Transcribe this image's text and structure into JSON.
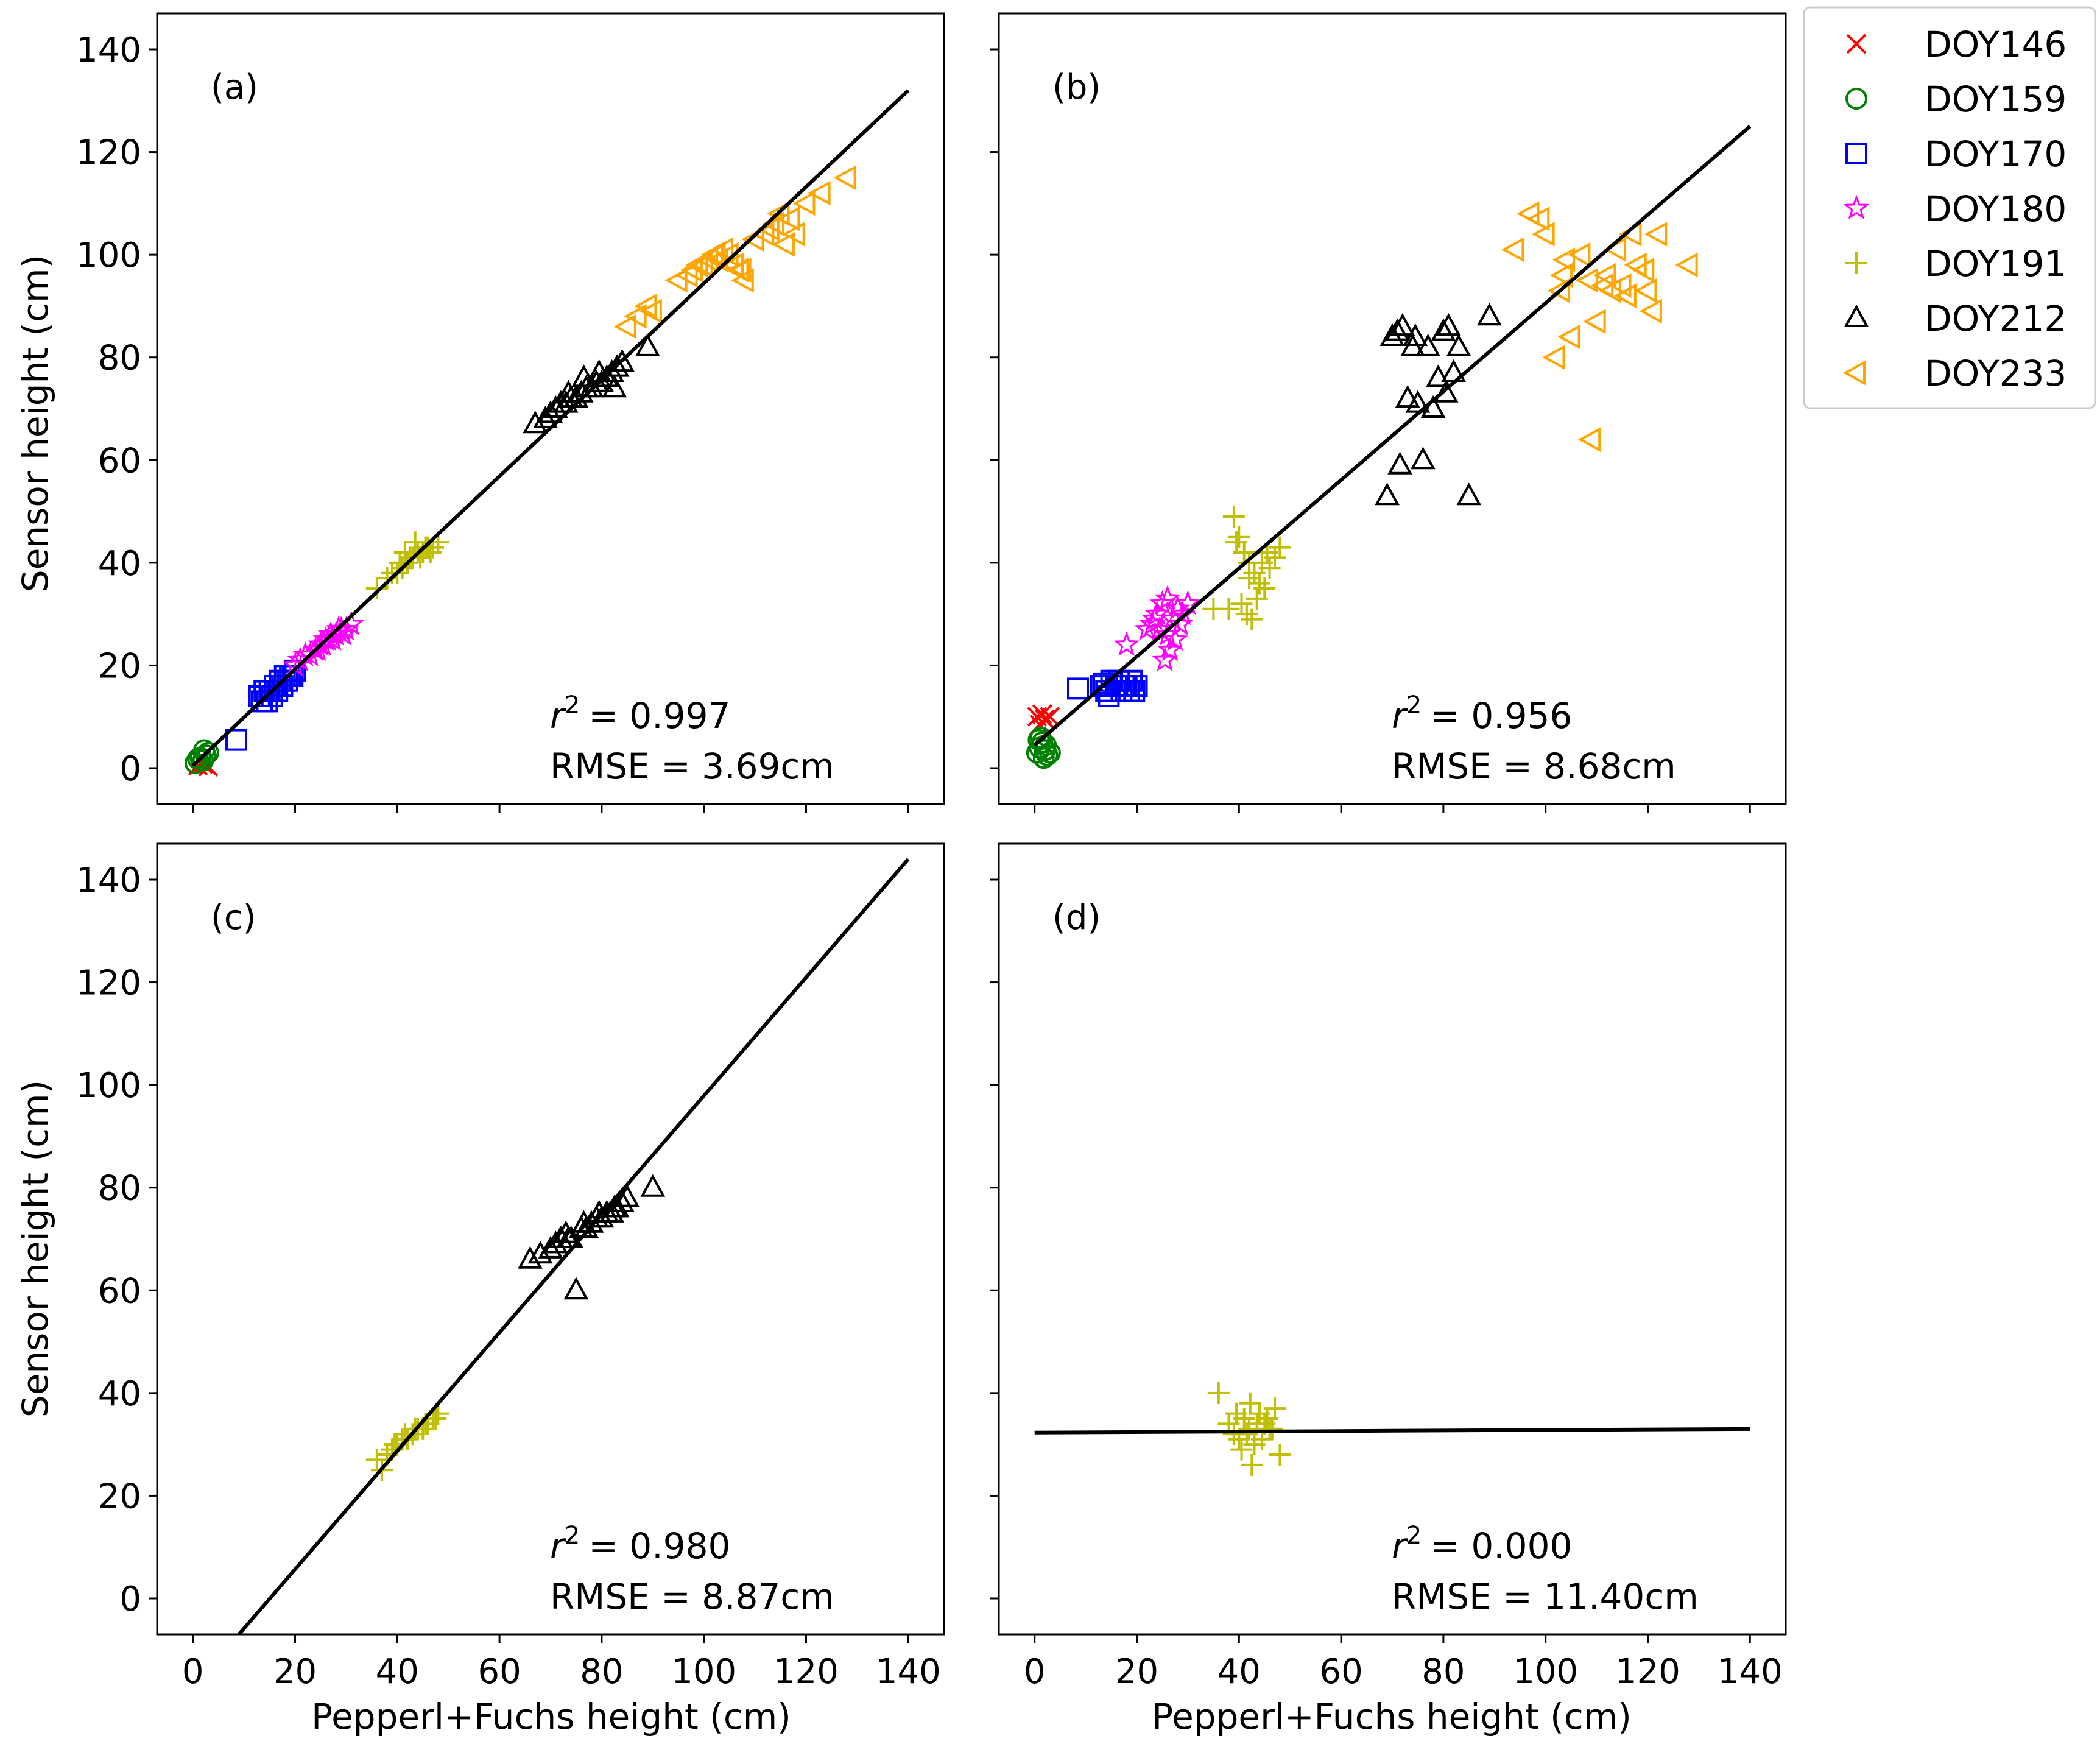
{
  "figure": {
    "xlabel": "Pepperl+Fuchs height (cm)",
    "ylabel": "Sensor height (cm)",
    "xticks": [
      "0",
      "20",
      "40",
      "60",
      "80",
      "100",
      "120",
      "140"
    ],
    "yticks": [
      "0",
      "20",
      "40",
      "60",
      "80",
      "100",
      "120",
      "140"
    ]
  },
  "legend": {
    "placement": "outside-right-top",
    "entries": [
      {
        "id": "DOY146",
        "label": "DOY146",
        "marker": "x-cross",
        "color": "#ff0000"
      },
      {
        "id": "DOY159",
        "label": "DOY159",
        "marker": "circle",
        "color": "#008000"
      },
      {
        "id": "DOY170",
        "label": "DOY170",
        "marker": "square",
        "color": "#0000ff"
      },
      {
        "id": "DOY180",
        "label": "DOY180",
        "marker": "star",
        "color": "#ff00ff"
      },
      {
        "id": "DOY191",
        "label": "DOY191",
        "marker": "plus",
        "color": "#bfbf00"
      },
      {
        "id": "DOY212",
        "label": "DOY212",
        "marker": "triangle-up",
        "color": "#000000"
      },
      {
        "id": "DOY233",
        "label": "DOY233",
        "marker": "triangle-left",
        "color": "#ffa500"
      }
    ]
  },
  "chart_data": [
    {
      "type": "scatter",
      "panel": "(a)",
      "xlim": [
        -7,
        147
      ],
      "ylim": [
        -7,
        147
      ],
      "r2_symbol": "r",
      "r2_value": "= 0.997",
      "rmse_text": "RMSE = 3.69cm",
      "fit": {
        "x": [
          0,
          140
        ],
        "y": [
          0.5,
          132
        ]
      },
      "series": [
        {
          "name": "DOY146",
          "x": [
            1.0,
            2.0,
            3.0
          ],
          "y": [
            0.5,
            0.8,
            0.3
          ]
        },
        {
          "name": "DOY159",
          "x": [
            0.5,
            1.5,
            2.0,
            2.5,
            3.0,
            1.0,
            2.2
          ],
          "y": [
            1.0,
            2.0,
            1.5,
            2.5,
            3.0,
            1.8,
            3.5
          ]
        },
        {
          "name": "DOY170",
          "x": [
            8.5,
            13,
            14,
            15,
            16,
            17,
            18,
            19,
            14.5,
            15.5,
            16.5,
            17.5,
            18.5,
            13.5,
            19.5,
            20
          ],
          "y": [
            5.5,
            14,
            15,
            15,
            16,
            17,
            18,
            18,
            13,
            14,
            15,
            16,
            17,
            13,
            18,
            19
          ]
        },
        {
          "name": "DOY180",
          "x": [
            20,
            22,
            24,
            25,
            26,
            27,
            28,
            29,
            30,
            23,
            25.5,
            27.5,
            29.5,
            31,
            21,
            24.5,
            26.5,
            28.5
          ],
          "y": [
            20,
            22,
            23,
            24,
            25,
            26,
            26,
            27,
            27,
            22,
            24,
            25,
            26,
            28,
            21,
            23,
            25,
            27
          ]
        },
        {
          "name": "DOY191",
          "x": [
            36,
            38,
            39,
            40,
            41,
            42,
            43,
            44,
            45,
            46,
            47,
            48,
            40.5,
            42.5,
            44.5,
            46.5,
            43.5,
            41.5,
            45.5
          ],
          "y": [
            35,
            37,
            38,
            38,
            39,
            40,
            41,
            42,
            42,
            43,
            43,
            44,
            40,
            41,
            41,
            42,
            44,
            42,
            43
          ]
        },
        {
          "name": "DOY212",
          "x": [
            67,
            69,
            70,
            71,
            72,
            73,
            74,
            75,
            76,
            77,
            78,
            79,
            80,
            81,
            82,
            83,
            84,
            89,
            73.5,
            76.5,
            79.5,
            82.5
          ],
          "y": [
            67,
            68,
            69,
            70,
            71,
            71,
            72,
            72,
            73,
            74,
            74,
            75,
            75,
            76,
            77,
            78,
            79,
            82,
            73,
            76,
            77,
            74
          ]
        },
        {
          "name": "DOY233",
          "x": [
            85,
            87,
            89,
            90,
            95,
            97,
            98,
            99,
            100,
            101,
            102,
            103,
            104,
            105,
            106,
            107,
            108,
            110,
            112,
            113,
            114,
            115,
            116,
            117,
            118,
            120,
            123,
            128,
            107.5,
            102.5
          ],
          "y": [
            86,
            88,
            90,
            89,
            95,
            96,
            97,
            98,
            98,
            99,
            100,
            99,
            101,
            100,
            98,
            97,
            95,
            103,
            104,
            105,
            106,
            108,
            102,
            107,
            104,
            110,
            112,
            115,
            97,
            100
          ]
        }
      ]
    },
    {
      "type": "scatter",
      "panel": "(b)",
      "xlim": [
        -7,
        147
      ],
      "ylim": [
        -7,
        147
      ],
      "r2_symbol": "r",
      "r2_value": "= 0.956",
      "rmse_text": "RMSE = 8.68cm",
      "fit": {
        "x": [
          0,
          140
        ],
        "y": [
          4.5,
          125
        ]
      },
      "series": [
        {
          "name": "DOY146",
          "x": [
            0.5,
            1.5,
            2.0,
            3.0,
            1.0
          ],
          "y": [
            10,
            10.5,
            9.5,
            10,
            8.5
          ]
        },
        {
          "name": "DOY159",
          "x": [
            0.5,
            1.0,
            1.5,
            2.0,
            2.5,
            3.0,
            1.2,
            2.2,
            1.8,
            0.8
          ],
          "y": [
            3,
            4,
            5,
            3.5,
            2.5,
            3,
            6,
            4.5,
            2,
            5.5
          ]
        },
        {
          "name": "DOY170",
          "x": [
            8.5,
            13,
            14,
            15,
            16,
            17,
            18,
            19,
            20,
            14.5,
            16.5,
            18.5,
            13.5,
            17.5,
            19.5
          ],
          "y": [
            15.5,
            16,
            15,
            17,
            16,
            15,
            16,
            17,
            16,
            14,
            17,
            15,
            16.5,
            16,
            15
          ]
        },
        {
          "name": "DOY180",
          "x": [
            18,
            22,
            23,
            24,
            25,
            26,
            27,
            28,
            29,
            30,
            25.5,
            26.5,
            27.5,
            24.5,
            28.5,
            23.5,
            26
          ],
          "y": [
            24,
            27,
            28,
            30,
            32,
            26,
            29,
            31,
            30,
            32,
            21,
            23,
            25,
            27,
            28,
            29,
            33
          ]
        },
        {
          "name": "DOY191",
          "x": [
            35,
            38,
            39,
            40,
            41,
            42,
            43,
            44,
            45,
            46,
            47,
            48,
            40.5,
            41.5,
            42.5,
            43.5,
            44.5,
            45.5,
            39.5,
            42
          ],
          "y": [
            31,
            31,
            49,
            45,
            42,
            40,
            38,
            36,
            35,
            39,
            41,
            43,
            32,
            30,
            29,
            33,
            40,
            42,
            44,
            37
          ]
        },
        {
          "name": "DOY212",
          "x": [
            69,
            70,
            71,
            72,
            73,
            74,
            75,
            76,
            77,
            78,
            79,
            80,
            81,
            82,
            83,
            85,
            89,
            71.5,
            80.5,
            74.5
          ],
          "y": [
            53,
            84,
            85,
            86,
            72,
            82,
            71,
            60,
            82,
            70,
            76,
            85,
            86,
            77,
            82,
            53,
            88,
            59,
            73,
            84
          ]
        },
        {
          "name": "DOY233",
          "x": [
            94,
            97,
            99,
            100,
            102,
            103,
            104,
            105,
            107,
            109,
            110,
            112,
            113,
            114,
            115,
            116,
            117,
            118,
            120,
            121,
            122,
            128,
            103.5,
            108.5,
            111.5,
            119.5
          ],
          "y": [
            101,
            108,
            107,
            104,
            80,
            93,
            99,
            84,
            100,
            64,
            87,
            96,
            93,
            101,
            94,
            92,
            104,
            98,
            93,
            89,
            104,
            98,
            96,
            95,
            94,
            97
          ]
        }
      ]
    },
    {
      "type": "scatter",
      "panel": "(c)",
      "xlim": [
        -7,
        147
      ],
      "ylim": [
        -7,
        147
      ],
      "r2_symbol": "r",
      "r2_value": "= 0.980",
      "rmse_text": "RMSE = 8.87cm",
      "fit": {
        "x": [
          9,
          140
        ],
        "y": [
          -7,
          144
        ]
      },
      "series": [
        {
          "name": "DOY191",
          "x": [
            36,
            37,
            38,
            39,
            40,
            41,
            42,
            43,
            44,
            45,
            46,
            47,
            48,
            39.5,
            41.5,
            43.5,
            45.5,
            47.5
          ],
          "y": [
            27,
            25,
            28,
            29,
            30,
            31,
            31,
            32,
            33,
            33,
            34,
            35,
            36,
            30,
            32,
            33,
            34,
            35
          ]
        },
        {
          "name": "DOY212",
          "x": [
            66,
            68,
            70,
            71,
            72,
            73,
            74,
            75,
            76,
            77,
            78,
            79,
            80,
            81,
            82,
            83,
            84,
            85,
            90,
            73.5,
            76.5,
            79.5,
            82.5
          ],
          "y": [
            66,
            67,
            68,
            69,
            70,
            71,
            70,
            60,
            72,
            72,
            73,
            74,
            74,
            75,
            75,
            76,
            77,
            78,
            80,
            70,
            73,
            75,
            76
          ]
        }
      ]
    },
    {
      "type": "scatter",
      "panel": "(d)",
      "xlim": [
        -7,
        147
      ],
      "ylim": [
        -7,
        147
      ],
      "r2_symbol": "r",
      "r2_value": "= 0.000",
      "rmse_text": "RMSE = 11.40cm",
      "fit": {
        "x": [
          0,
          140
        ],
        "y": [
          32.3,
          33
        ]
      },
      "series": [
        {
          "name": "DOY191",
          "x": [
            36,
            38,
            39,
            40,
            41,
            42,
            43,
            44,
            45,
            46,
            47,
            48,
            40.5,
            41.5,
            42.5,
            43.5,
            44.5,
            45.5,
            39.5,
            42.2,
            46.5
          ],
          "y": [
            40,
            34,
            32,
            31,
            35,
            33,
            30,
            36,
            34,
            33,
            37,
            28,
            29,
            32,
            26,
            34,
            31,
            35,
            36,
            38,
            33
          ]
        }
      ]
    }
  ]
}
